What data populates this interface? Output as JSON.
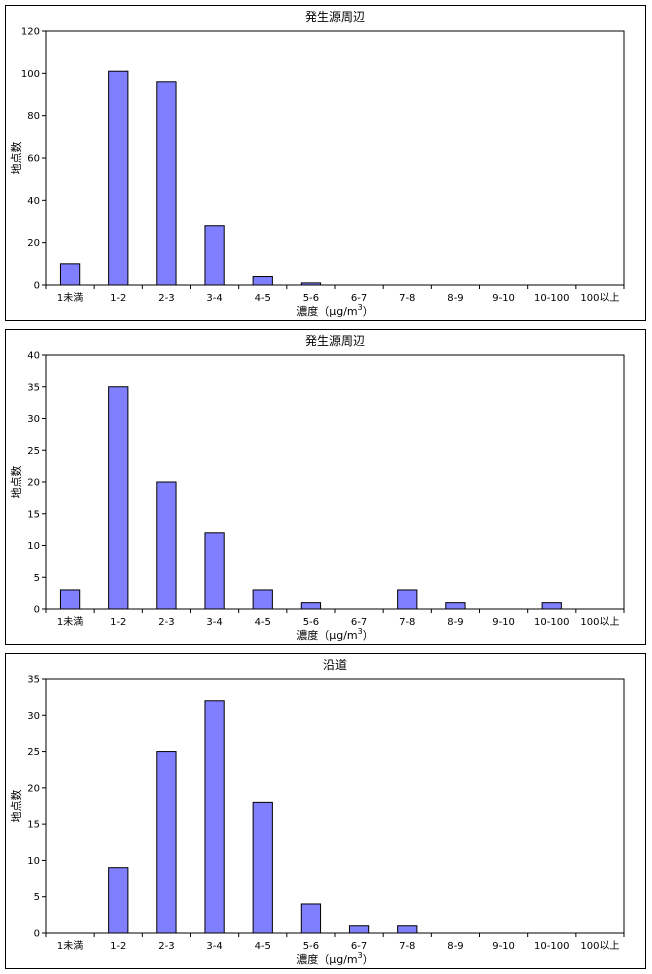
{
  "chart_data": [
    {
      "type": "bar",
      "title": "発生源周辺",
      "xlabel_main": "濃度（μg/m",
      "xlabel_sup": "3",
      "xlabel_close": "）",
      "ylabel": "地点数",
      "categories": [
        "1未満",
        "1-2",
        "2-3",
        "3-4",
        "4-5",
        "5-6",
        "6-7",
        "7-8",
        "8-9",
        "9-10",
        "10-100",
        "100以上"
      ],
      "values": [
        10,
        101,
        96,
        28,
        4,
        1,
        0,
        0,
        0,
        0,
        0,
        0
      ],
      "ylim": [
        0,
        120
      ],
      "yticks": [
        0,
        20,
        40,
        60,
        80,
        100,
        120
      ],
      "bar_color": "#7f7fff",
      "grid": false
    },
    {
      "type": "bar",
      "title": "発生源周辺",
      "xlabel_main": "濃度（μg/m",
      "xlabel_sup": "3",
      "xlabel_close": "）",
      "ylabel": "地点数",
      "categories": [
        "1未満",
        "1-2",
        "2-3",
        "3-4",
        "4-5",
        "5-6",
        "6-7",
        "7-8",
        "8-9",
        "9-10",
        "10-100",
        "100以上"
      ],
      "values": [
        3,
        35,
        20,
        12,
        3,
        1,
        0,
        3,
        1,
        0,
        1,
        0
      ],
      "ylim": [
        0,
        40
      ],
      "yticks": [
        0,
        5,
        10,
        15,
        20,
        25,
        30,
        35,
        40
      ],
      "bar_color": "#7f7fff",
      "grid": false
    },
    {
      "type": "bar",
      "title": "沿道",
      "xlabel_main": "濃度（μg/m",
      "xlabel_sup": "3",
      "xlabel_close": "）",
      "ylabel": "地点数",
      "categories": [
        "1未満",
        "1-2",
        "2-3",
        "3-4",
        "4-5",
        "5-6",
        "6-7",
        "7-8",
        "8-9",
        "9-10",
        "10-100",
        "100以上"
      ],
      "values": [
        0,
        9,
        25,
        32,
        18,
        4,
        1,
        1,
        0,
        0,
        0,
        0
      ],
      "ylim": [
        0,
        35
      ],
      "yticks": [
        0,
        5,
        10,
        15,
        20,
        25,
        30,
        35
      ],
      "bar_color": "#7f7fff",
      "grid": false
    }
  ]
}
